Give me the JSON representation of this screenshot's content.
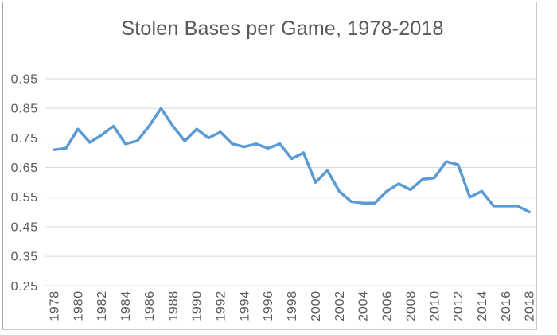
{
  "chart_data": {
    "type": "line",
    "title": "Stolen Bases per Game, 1978-2018",
    "xlabel": "",
    "ylabel": "",
    "x": [
      1978,
      1979,
      1980,
      1981,
      1982,
      1983,
      1984,
      1985,
      1986,
      1987,
      1988,
      1989,
      1990,
      1991,
      1992,
      1993,
      1994,
      1995,
      1996,
      1997,
      1998,
      1999,
      2000,
      2001,
      2002,
      2003,
      2004,
      2005,
      2006,
      2007,
      2008,
      2009,
      2010,
      2011,
      2012,
      2013,
      2014,
      2015,
      2016,
      2017,
      2018
    ],
    "values": [
      0.71,
      0.715,
      0.78,
      0.735,
      0.76,
      0.79,
      0.73,
      0.74,
      0.79,
      0.85,
      0.79,
      0.74,
      0.78,
      0.75,
      0.77,
      0.73,
      0.72,
      0.73,
      0.715,
      0.73,
      0.68,
      0.7,
      0.6,
      0.64,
      0.57,
      0.535,
      0.53,
      0.53,
      0.57,
      0.595,
      0.575,
      0.61,
      0.615,
      0.67,
      0.66,
      0.55,
      0.57,
      0.52,
      0.52,
      0.52,
      0.5
    ],
    "xticks": [
      "1978",
      "1980",
      "1982",
      "1984",
      "1986",
      "1988",
      "1990",
      "1992",
      "1994",
      "1996",
      "1998",
      "2000",
      "2002",
      "2004",
      "2006",
      "2008",
      "2010",
      "2012",
      "2014",
      "2016",
      "2018"
    ],
    "yticks": [
      "0.95",
      "0.85",
      "0.75",
      "0.65",
      "0.55",
      "0.45",
      "0.35",
      "0.25"
    ],
    "ylim": [
      0.25,
      0.95
    ],
    "grid": true,
    "legend": "none",
    "colors": {
      "line": "#5b9bd5",
      "grid": "#d9d9d9",
      "axis": "#bfbfbf",
      "tick": "#595959",
      "title": "#595959",
      "frame_border": "#c9c9c9"
    }
  }
}
